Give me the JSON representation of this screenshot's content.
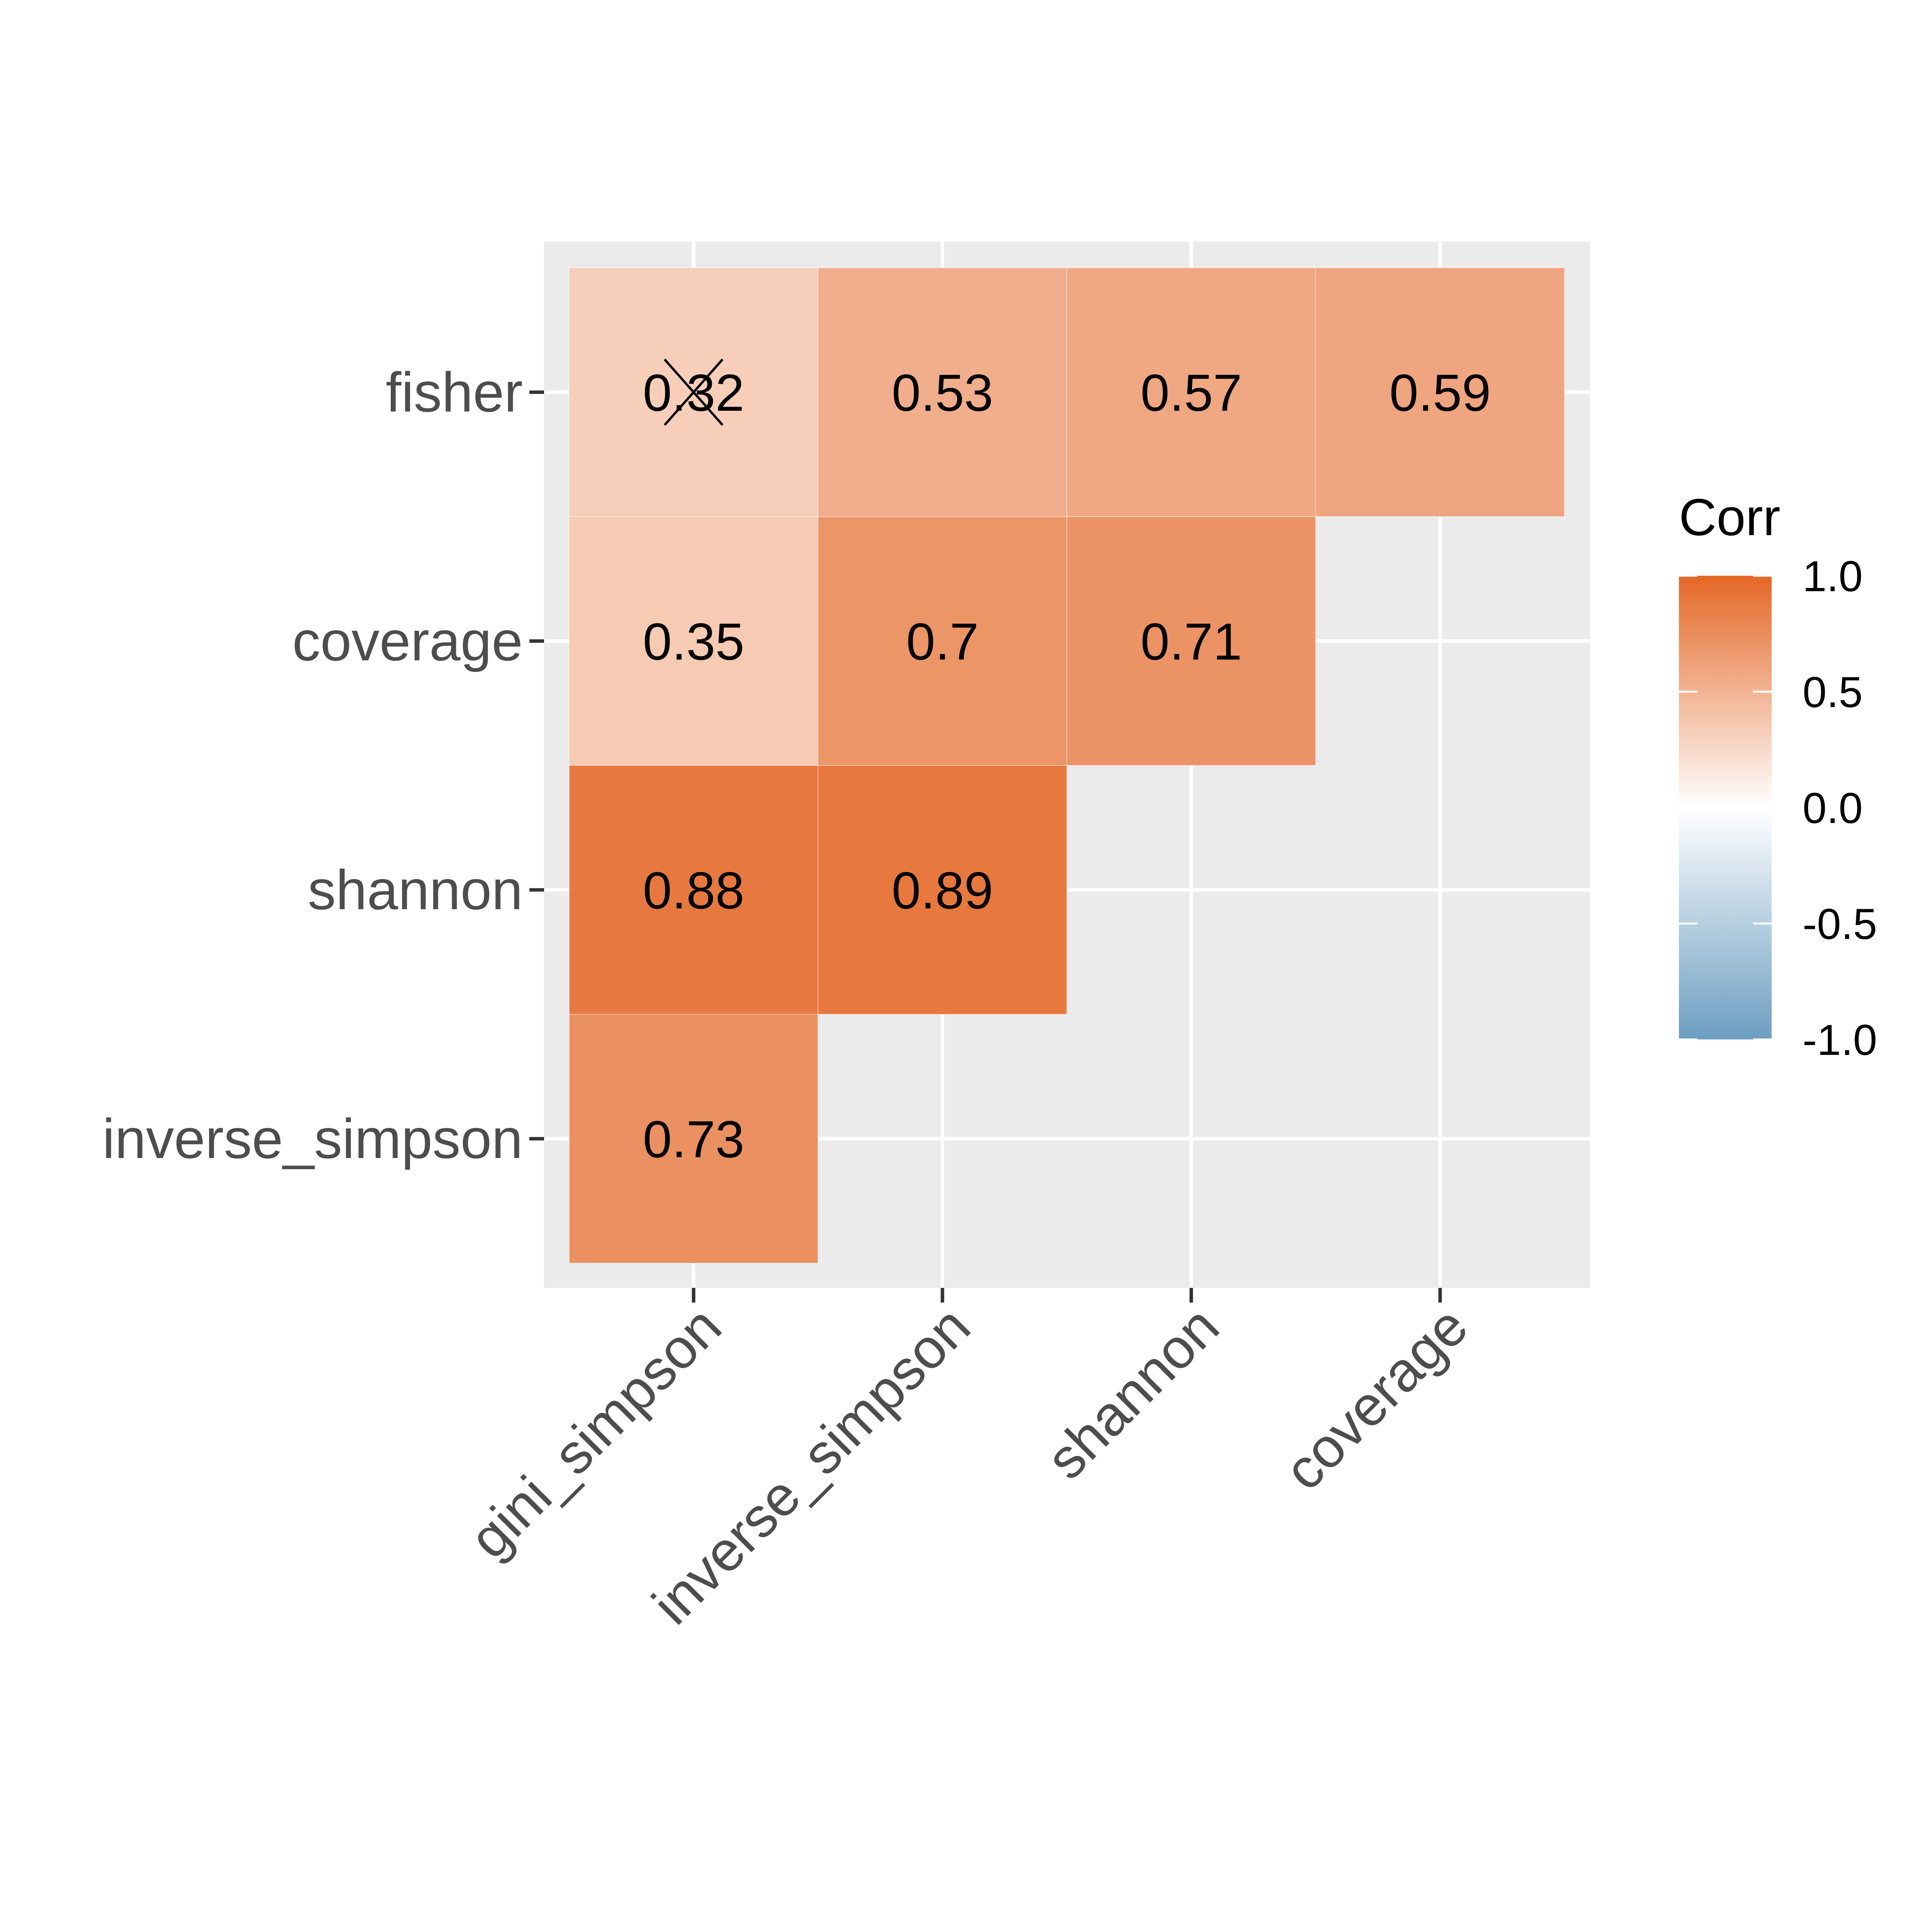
{
  "chart_data": {
    "type": "heatmap",
    "x_categories": [
      "gini_simpson",
      "inverse_simpson",
      "shannon",
      "coverage"
    ],
    "y_categories": [
      "fisher",
      "coverage",
      "shannon",
      "inverse_simpson"
    ],
    "cells": [
      {
        "x": "gini_simpson",
        "y": "fisher",
        "value": 0.32,
        "label": "0.32",
        "insignificant": true
      },
      {
        "x": "inverse_simpson",
        "y": "fisher",
        "value": 0.53,
        "label": "0.53"
      },
      {
        "x": "shannon",
        "y": "fisher",
        "value": 0.57,
        "label": "0.57"
      },
      {
        "x": "coverage",
        "y": "fisher",
        "value": 0.59,
        "label": "0.59"
      },
      {
        "x": "gini_simpson",
        "y": "coverage",
        "value": 0.35,
        "label": "0.35"
      },
      {
        "x": "inverse_simpson",
        "y": "coverage",
        "value": 0.7,
        "label": "0.7"
      },
      {
        "x": "shannon",
        "y": "coverage",
        "value": 0.71,
        "label": "0.71"
      },
      {
        "x": "gini_simpson",
        "y": "shannon",
        "value": 0.88,
        "label": "0.88"
      },
      {
        "x": "inverse_simpson",
        "y": "shannon",
        "value": 0.89,
        "label": "0.89"
      },
      {
        "x": "gini_simpson",
        "y": "inverse_simpson",
        "value": 0.73,
        "label": "0.73"
      }
    ],
    "legend": {
      "title": "Corr",
      "ticks": [
        "1.0",
        "0.5",
        "0.0",
        "-0.5",
        "-1.0"
      ],
      "range": [
        -1,
        1
      ],
      "placement": "right"
    },
    "colors": {
      "low": "#6d9ec1",
      "mid": "#ffffff",
      "high": "#e46726",
      "panel_background": "#ebebeb",
      "grid": "#ffffff"
    },
    "grid": true
  }
}
